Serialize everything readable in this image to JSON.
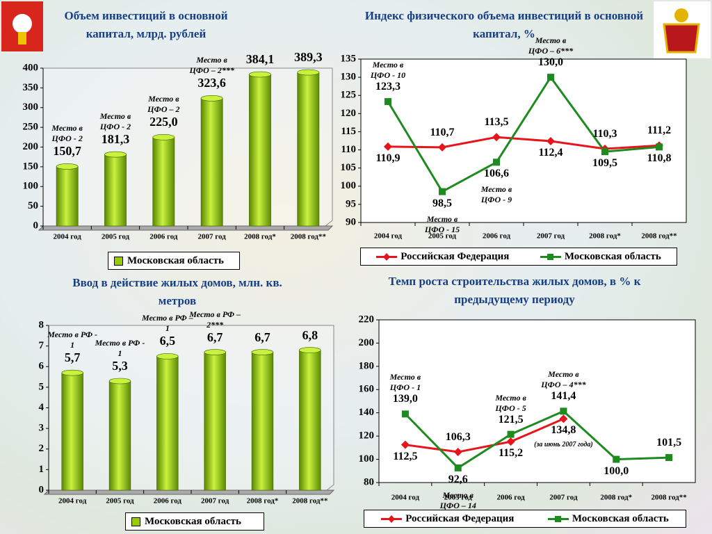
{
  "chart_data": [
    {
      "type": "bar",
      "title": "Объем инвестиций в основной капитал, млрд. рублей",
      "categories": [
        "2004 год",
        "2005 год",
        "2006 год",
        "2007 год",
        "2008 год*",
        "2008 год**"
      ],
      "series": [
        {
          "name": "Московская область",
          "color": "#99cc00",
          "values": [
            150.7,
            181.3,
            225.0,
            323.6,
            384.1,
            389.3
          ],
          "value_labels": [
            "150,7",
            "181,3",
            "225,0",
            "323,6",
            "384,1",
            "389,3"
          ]
        }
      ],
      "annotations": [
        "Место в ЦФО - 2",
        "Место в ЦФО - 2",
        "Место в ЦФО – 2",
        "Место в ЦФО – 2***",
        null,
        null
      ],
      "ylim": [
        0,
        400
      ],
      "yticks": [
        0,
        50,
        100,
        150,
        200,
        250,
        300,
        350,
        400
      ]
    },
    {
      "type": "line",
      "title": "Индекс физического объема инвестиций в основной капитал, %",
      "categories": [
        "2004 год",
        "2005 год",
        "2006 год",
        "2007 год",
        "2008 год*",
        "2008 год**"
      ],
      "series": [
        {
          "name": "Российская Федерация",
          "color": "#e8141c",
          "marker": "diamond",
          "values": [
            110.9,
            110.7,
            113.5,
            112.4,
            110.3,
            111.2
          ],
          "value_labels": [
            "110,9",
            "110,7",
            "113,5",
            "112,4",
            "110,3",
            "111,2"
          ]
        },
        {
          "name": "Московская область",
          "color": "#1f8a1f",
          "marker": "square",
          "values": [
            123.3,
            98.5,
            106.6,
            130.0,
            109.5,
            110.8
          ],
          "value_labels": [
            "123,3",
            "98,5",
            "106,6",
            "130,0",
            "109,5",
            "110,8"
          ]
        }
      ],
      "annotations": [
        "Место в ЦФО - 10",
        "Место в ЦФО - 15",
        "Место в ЦФО - 9",
        "Место в ЦФО – 6***",
        null,
        null
      ],
      "ylim": [
        90,
        135
      ],
      "yticks": [
        90,
        95,
        100,
        105,
        110,
        115,
        120,
        125,
        130,
        135
      ]
    },
    {
      "type": "bar",
      "title": "Ввод в действие жилых домов, млн. кв. метров",
      "categories": [
        "2004 год",
        "2005 год",
        "2006 год",
        "2007 год",
        "2008 год*",
        "2008 год**"
      ],
      "series": [
        {
          "name": "Московская область",
          "color": "#99cc00",
          "values": [
            5.7,
            5.3,
            6.5,
            6.7,
            6.7,
            6.8
          ],
          "value_labels": [
            "5,7",
            "5,3",
            "6,5",
            "6,7",
            "6,7",
            "6,8"
          ]
        }
      ],
      "annotations": [
        "Место в РФ - 1",
        "Место в РФ - 1",
        "Место в РФ – 1",
        "Место в РФ – 2***",
        null,
        null
      ],
      "ylim": [
        0,
        8
      ],
      "yticks": [
        0,
        1,
        2,
        3,
        4,
        5,
        6,
        7,
        8
      ]
    },
    {
      "type": "line",
      "title": "Темп роста строительства жилых домов, в % к предыдущему периоду",
      "categories": [
        "2004 год",
        "2005 год",
        "2006 год",
        "2007 год",
        "2008 год*",
        "2008 год**"
      ],
      "series": [
        {
          "name": "Российская Федерация",
          "color": "#e8141c",
          "marker": "diamond",
          "values": [
            112.5,
            106.3,
            115.2,
            134.8,
            null,
            null
          ],
          "value_labels": [
            "112,5",
            "106,3",
            "115,2",
            "134,8",
            null,
            null
          ]
        },
        {
          "name": "Московская область",
          "color": "#1f8a1f",
          "marker": "square",
          "values": [
            139.0,
            92.6,
            121.5,
            141.4,
            100.0,
            101.5
          ],
          "value_labels": [
            "139,0",
            "92,6",
            "121,5",
            "141,4",
            "100,0",
            "101,5"
          ]
        }
      ],
      "annotations": [
        "Место в ЦФО - 1",
        "Место в ЦФО – 14",
        "Место в ЦФО - 5",
        "Место в ЦФО – 4***",
        null,
        null
      ],
      "note": "(за июнь 2007 года)",
      "ylim": [
        80,
        220
      ],
      "yticks": [
        80,
        100,
        120,
        140,
        160,
        180,
        200,
        220
      ]
    }
  ]
}
